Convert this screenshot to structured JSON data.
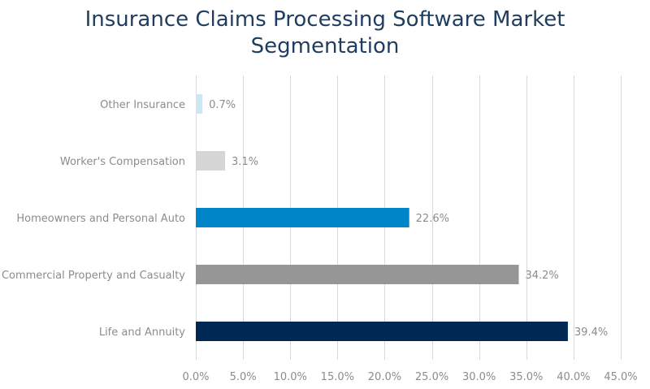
{
  "chart_data": {
    "type": "bar",
    "orientation": "horizontal",
    "title_lines": [
      "Insurance Claims Processing Software Market",
      "Segmentation"
    ],
    "categories": [
      "Life and Annuity",
      "Commercial Property and Casualty",
      "Homeowners and Personal Auto",
      "Worker's Compensation",
      "Other Insurance"
    ],
    "values": [
      39.4,
      34.2,
      22.6,
      3.1,
      0.7
    ],
    "data_labels": [
      "39.4%",
      "34.2%",
      "22.6%",
      "3.1%",
      "0.7%"
    ],
    "bar_colors": [
      "#002855",
      "#969696",
      "#0085c8",
      "#d6d6d6",
      "#cfe6f5"
    ],
    "x_ticks": [
      0,
      5,
      10,
      15,
      20,
      25,
      30,
      35,
      40,
      45
    ],
    "x_tick_labels": [
      "0.0%",
      "5.0%",
      "10.0%",
      "15.0%",
      "20.0%",
      "25.0%",
      "30.0%",
      "35.0%",
      "40.0%",
      "45.0%"
    ],
    "xlim": [
      0,
      45
    ],
    "xlabel": "",
    "ylabel": "",
    "grid": "vertical",
    "legend": "none"
  },
  "colors": {
    "title": "#1f3d5f",
    "label_text": "#8c8c8c",
    "gridline": "#d9d9d9"
  }
}
